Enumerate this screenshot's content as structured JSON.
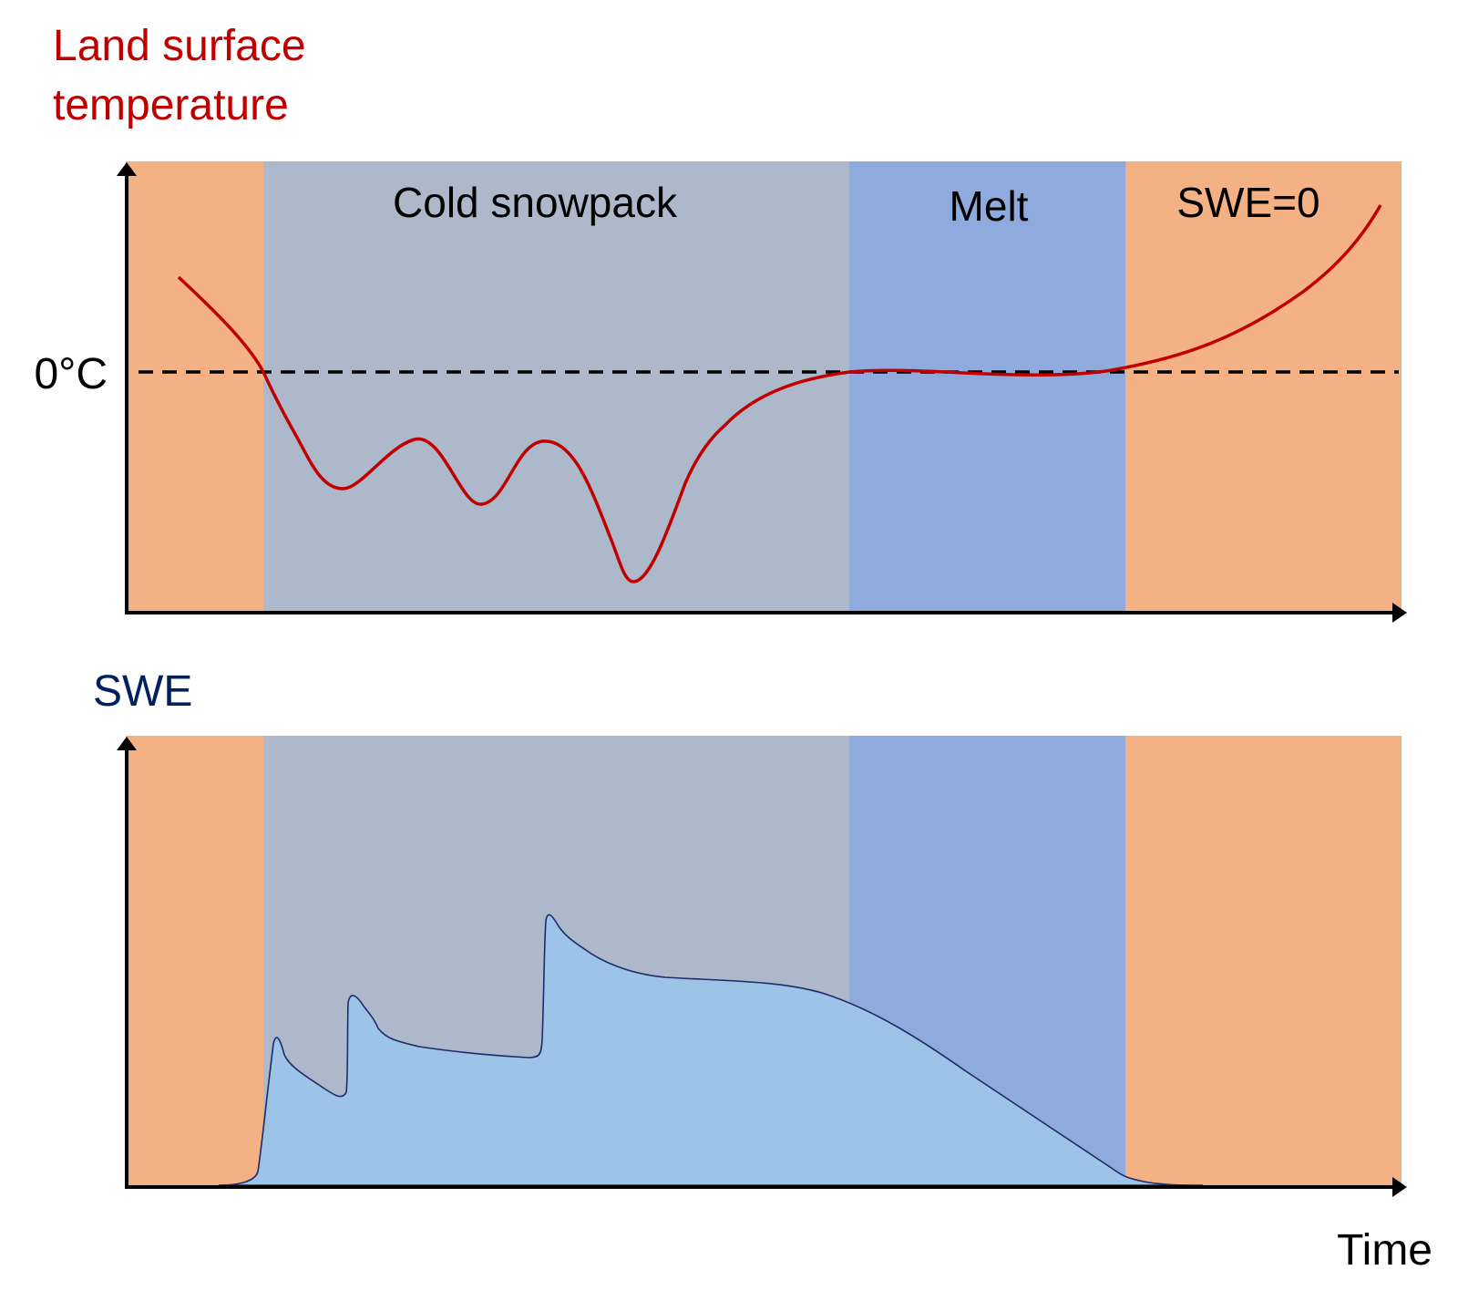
{
  "labels": {
    "temperature_line1": "Land surface",
    "temperature_line2": "temperature",
    "zero_c": "0°C",
    "swe": "SWE",
    "time": "Time"
  },
  "phases": [
    {
      "name": "",
      "color": "#f4b183"
    },
    {
      "name": "Cold snowpack",
      "color": "#adb9ca"
    },
    {
      "name": "Melt",
      "color": "#8faadc"
    },
    {
      "name": "SWE=0",
      "color": "#f4b183"
    }
  ],
  "colors": {
    "temperature_curve": "#c00000",
    "temperature_label": "#c00000",
    "swe_label": "#002060",
    "swe_fill": "#9dc3e6",
    "swe_outline": "#1f2a6b",
    "axis": "#000000"
  }
}
